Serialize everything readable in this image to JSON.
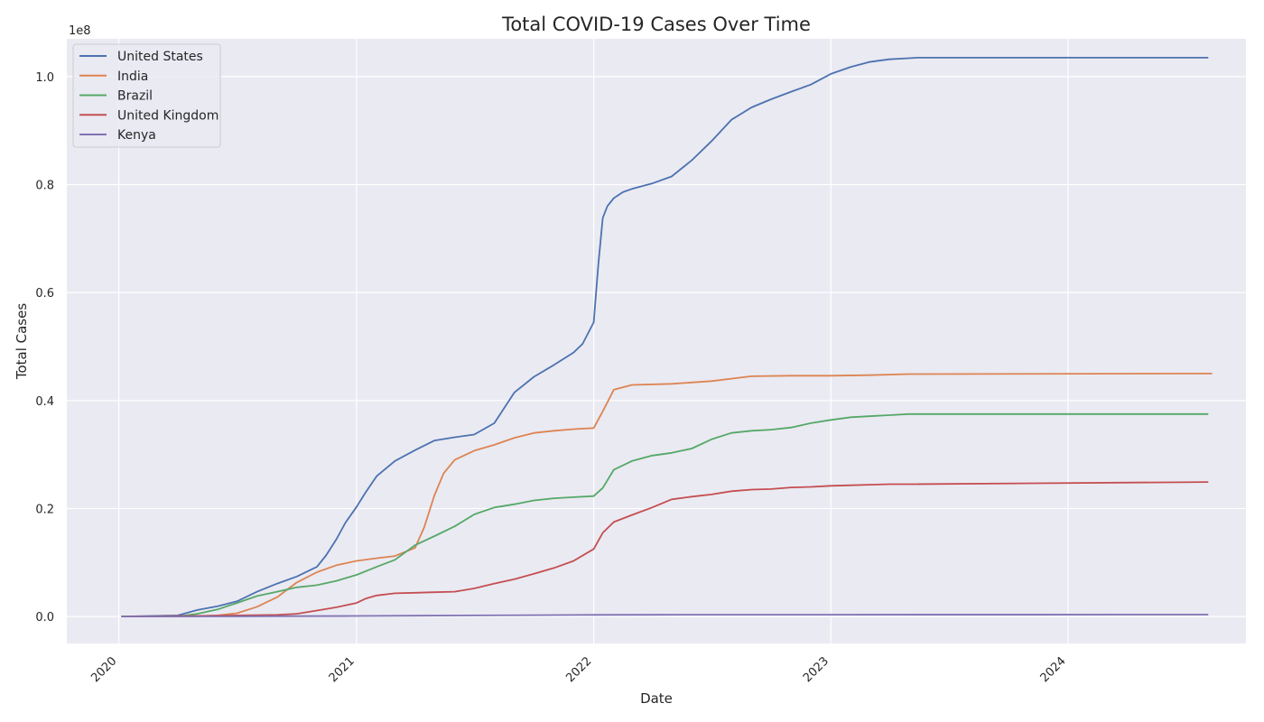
{
  "chart_data": {
    "type": "line",
    "title": "Total COVID-19 Cases Over Time",
    "xlabel": "Date",
    "ylabel": "Total Cases",
    "y_offset_label": "1e8",
    "grid": true,
    "legend_position": "top-left",
    "x_ticks": [
      "2020",
      "2021",
      "2022",
      "2023",
      "2024"
    ],
    "y_ticks": [
      "0.0",
      "0.2",
      "0.4",
      "0.6",
      "0.8",
      "1.0"
    ],
    "y_tick_values": [
      0,
      20000000,
      40000000,
      60000000,
      80000000,
      100000000
    ],
    "xlim": [
      "2019-10-13",
      "2024-10-01"
    ],
    "ylim": [
      -5000000,
      107000000
    ],
    "series": [
      {
        "name": "United States",
        "color": "#4c72b0",
        "x": [
          "2020-01-05",
          "2020-04-01",
          "2020-05-01",
          "2020-06-01",
          "2020-07-01",
          "2020-08-01",
          "2020-09-01",
          "2020-10-01",
          "2020-11-01",
          "2020-11-15",
          "2020-12-01",
          "2020-12-15",
          "2021-01-01",
          "2021-01-15",
          "2021-02-01",
          "2021-03-01",
          "2021-04-01",
          "2021-05-01",
          "2021-06-01",
          "2021-07-01",
          "2021-08-01",
          "2021-09-01",
          "2021-10-01",
          "2021-11-01",
          "2021-12-01",
          "2021-12-15",
          "2022-01-01",
          "2022-01-08",
          "2022-01-15",
          "2022-01-22",
          "2022-02-01",
          "2022-02-15",
          "2022-03-01",
          "2022-04-01",
          "2022-05-01",
          "2022-06-01",
          "2022-07-01",
          "2022-08-01",
          "2022-09-01",
          "2022-10-01",
          "2022-11-01",
          "2022-12-01",
          "2023-01-01",
          "2023-02-01",
          "2023-03-01",
          "2023-04-01",
          "2023-05-01",
          "2023-05-15",
          "2024-08-04"
        ],
        "values": [
          0,
          200000,
          1200000,
          1900000,
          2800000,
          4600000,
          6100000,
          7400000,
          9200000,
          11300000,
          14300000,
          17400000,
          20300000,
          23000000,
          26000000,
          28800000,
          30800000,
          32600000,
          33200000,
          33700000,
          35800000,
          41500000,
          44400000,
          46600000,
          48900000,
          50500000,
          54500000,
          65000000,
          73800000,
          76000000,
          77500000,
          78600000,
          79200000,
          80200000,
          81500000,
          84500000,
          88000000,
          92000000,
          94300000,
          95800000,
          97200000,
          98500000,
          100500000,
          101800000,
          102700000,
          103200000,
          103400000,
          103500000,
          103500000
        ]
      },
      {
        "name": "India",
        "color": "#dd8452",
        "x": [
          "2020-01-05",
          "2020-05-01",
          "2020-06-01",
          "2020-07-01",
          "2020-08-01",
          "2020-09-01",
          "2020-10-01",
          "2020-11-01",
          "2020-12-01",
          "2021-01-01",
          "2021-02-01",
          "2021-03-01",
          "2021-04-01",
          "2021-04-15",
          "2021-05-01",
          "2021-05-15",
          "2021-06-01",
          "2021-07-01",
          "2021-08-01",
          "2021-09-01",
          "2021-10-01",
          "2021-11-01",
          "2021-12-01",
          "2022-01-01",
          "2022-01-15",
          "2022-02-01",
          "2022-03-01",
          "2022-05-01",
          "2022-07-01",
          "2022-09-01",
          "2022-11-01",
          "2023-01-01",
          "2023-03-01",
          "2023-05-01",
          "2024-08-10"
        ],
        "values": [
          0,
          50000,
          200000,
          600000,
          1800000,
          3600000,
          6300000,
          8200000,
          9500000,
          10300000,
          10800000,
          11200000,
          12700000,
          16500000,
          22500000,
          26500000,
          29000000,
          30700000,
          31800000,
          33100000,
          34000000,
          34400000,
          34700000,
          34900000,
          38000000,
          42000000,
          42900000,
          43100000,
          43600000,
          44500000,
          44600000,
          44600000,
          44700000,
          44900000,
          45000000
        ]
      },
      {
        "name": "Brazil",
        "color": "#55a868",
        "x": [
          "2020-01-05",
          "2020-04-01",
          "2020-05-01",
          "2020-06-01",
          "2020-07-01",
          "2020-08-01",
          "2020-09-01",
          "2020-10-01",
          "2020-11-01",
          "2020-12-01",
          "2021-01-01",
          "2021-02-01",
          "2021-03-01",
          "2021-04-01",
          "2021-05-01",
          "2021-06-01",
          "2021-07-01",
          "2021-08-01",
          "2021-09-01",
          "2021-10-01",
          "2021-11-01",
          "2021-12-01",
          "2022-01-01",
          "2022-01-15",
          "2022-02-01",
          "2022-03-01",
          "2022-04-01",
          "2022-05-01",
          "2022-06-01",
          "2022-07-01",
          "2022-08-01",
          "2022-09-01",
          "2022-10-01",
          "2022-11-01",
          "2022-12-01",
          "2023-01-01",
          "2023-02-01",
          "2023-03-01",
          "2023-04-01",
          "2023-05-01",
          "2024-08-04"
        ],
        "values": [
          0,
          10000,
          500000,
          1300000,
          2500000,
          3800000,
          4600000,
          5400000,
          5800000,
          6600000,
          7700000,
          9200000,
          10500000,
          13200000,
          14900000,
          16700000,
          18900000,
          20200000,
          20800000,
          21500000,
          21900000,
          22100000,
          22300000,
          23800000,
          27200000,
          28800000,
          29800000,
          30300000,
          31100000,
          32800000,
          34000000,
          34400000,
          34600000,
          35000000,
          35800000,
          36400000,
          36900000,
          37100000,
          37300000,
          37500000,
          37500000
        ]
      },
      {
        "name": "United Kingdom",
        "color": "#c44e52",
        "x": [
          "2020-01-05",
          "2020-07-01",
          "2020-09-01",
          "2020-10-01",
          "2020-11-01",
          "2020-12-01",
          "2021-01-01",
          "2021-01-15",
          "2021-02-01",
          "2021-03-01",
          "2021-04-01",
          "2021-05-01",
          "2021-06-01",
          "2021-07-01",
          "2021-08-01",
          "2021-09-01",
          "2021-10-01",
          "2021-11-01",
          "2021-12-01",
          "2022-01-01",
          "2022-01-15",
          "2022-02-01",
          "2022-03-01",
          "2022-04-01",
          "2022-05-01",
          "2022-06-01",
          "2022-07-01",
          "2022-08-01",
          "2022-09-01",
          "2022-10-01",
          "2022-11-01",
          "2022-12-01",
          "2023-01-01",
          "2023-02-01",
          "2023-03-01",
          "2023-04-01",
          "2023-05-01",
          "2024-08-04"
        ],
        "values": [
          0,
          200000,
          300000,
          500000,
          1100000,
          1700000,
          2500000,
          3300000,
          3900000,
          4300000,
          4400000,
          4500000,
          4600000,
          5200000,
          6100000,
          6900000,
          7900000,
          9000000,
          10300000,
          12500000,
          15500000,
          17500000,
          18800000,
          20200000,
          21700000,
          22200000,
          22600000,
          23200000,
          23500000,
          23600000,
          23900000,
          24000000,
          24200000,
          24300000,
          24400000,
          24500000,
          24500000,
          24900000
        ]
      },
      {
        "name": "Kenya",
        "color": "#8172b3",
        "x": [
          "2020-01-05",
          "2020-04-01",
          "2020-07-01",
          "2020-10-01",
          "2021-01-01",
          "2021-04-01",
          "2021-07-01",
          "2021-10-01",
          "2022-01-01",
          "2022-04-01",
          "2022-07-01",
          "2023-01-01",
          "2024-08-04"
        ],
        "values": [
          0,
          10000,
          20000,
          60000,
          100000,
          150000,
          200000,
          250000,
          300000,
          320000,
          330000,
          340000,
          345000
        ]
      }
    ]
  }
}
